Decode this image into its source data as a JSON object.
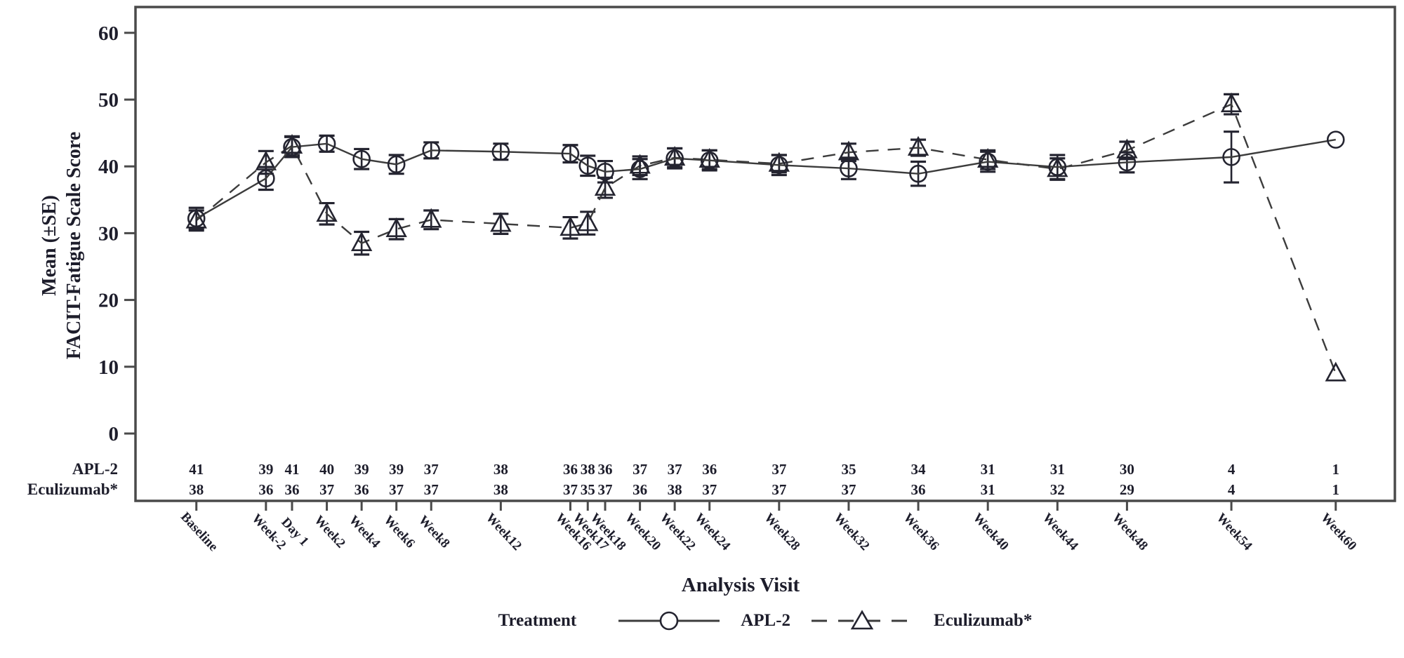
{
  "figure": {
    "ylabel_line1": "Mean (±SE)",
    "ylabel_line2": "FACIT-Fatigue Scale Score",
    "xlabel": "Analysis Visit",
    "legend": {
      "title": "Treatment",
      "items": [
        {
          "label": "APL-2",
          "marker": "circle",
          "line": "solid"
        },
        {
          "label": "Eculizumab*",
          "marker": "triangle",
          "line": "dashed"
        }
      ]
    }
  },
  "colors": {
    "ink": "#1d1d2b",
    "frame": "#4a4a4a",
    "series_line": "#3c3c3c",
    "marker": "#242430"
  },
  "chart_data": {
    "type": "line",
    "title": "",
    "xlabel": "Analysis Visit",
    "ylabel": "Mean (±SE) FACIT-Fatigue Scale Score",
    "ylim": [
      -10.5,
      64
    ],
    "yticks": [
      0,
      10,
      20,
      30,
      40,
      50,
      60
    ],
    "grid": false,
    "legend_position": "bottom",
    "categories": [
      "Baseline",
      "Week-2",
      "Day 1",
      "Week2",
      "Week4",
      "Week6",
      "Week8",
      "Week12",
      "Week16",
      "Week17",
      "Week18",
      "Week20",
      "Week22",
      "Week24",
      "Week28",
      "Week32",
      "Week36",
      "Week40",
      "Week44",
      "Week48",
      "Week54",
      "Week60"
    ],
    "x_week_positions": [
      -5.5,
      -1.5,
      0,
      2,
      4,
      6,
      8,
      12,
      16,
      17,
      18,
      20,
      22,
      24,
      28,
      32,
      36,
      40,
      44,
      48,
      54,
      60
    ],
    "series": [
      {
        "name": "APL-2",
        "marker": "circle",
        "line": "solid",
        "values": [
          32.2,
          38.2,
          42.9,
          43.4,
          41.1,
          40.3,
          42.4,
          42.2,
          41.9,
          40.1,
          39.2,
          39.6,
          41.2,
          40.9,
          40.2,
          39.7,
          38.9,
          40.7,
          39.9,
          40.6,
          41.4,
          44.0
        ],
        "se": [
          1.6,
          1.7,
          1.5,
          1.2,
          1.5,
          1.4,
          1.2,
          1.2,
          1.3,
          1.5,
          1.6,
          1.5,
          1.5,
          1.5,
          1.5,
          1.6,
          1.8,
          1.5,
          1.8,
          1.5,
          3.8,
          0
        ],
        "n": [
          41,
          39,
          41,
          40,
          39,
          39,
          37,
          38,
          36,
          38,
          36,
          37,
          37,
          36,
          37,
          35,
          34,
          31,
          31,
          30,
          4,
          1
        ]
      },
      {
        "name": "Eculizumab*",
        "marker": "triangle",
        "line": "dashed",
        "values": [
          31.9,
          40.6,
          43.1,
          32.9,
          28.5,
          30.6,
          32.0,
          31.4,
          30.8,
          31.5,
          36.8,
          40.1,
          41.3,
          41.0,
          40.4,
          42.1,
          42.8,
          41.0,
          39.6,
          42.4,
          49.3,
          9.0
        ],
        "se": [
          1.5,
          1.7,
          1.4,
          1.6,
          1.7,
          1.5,
          1.4,
          1.5,
          1.6,
          1.7,
          1.5,
          1.4,
          1.4,
          1.4,
          1.3,
          1.3,
          1.2,
          1.4,
          1.6,
          1.3,
          1.5,
          0
        ],
        "n": [
          38,
          36,
          36,
          37,
          36,
          37,
          37,
          38,
          37,
          35,
          37,
          36,
          38,
          37,
          37,
          37,
          36,
          31,
          32,
          29,
          4,
          1
        ]
      }
    ]
  }
}
